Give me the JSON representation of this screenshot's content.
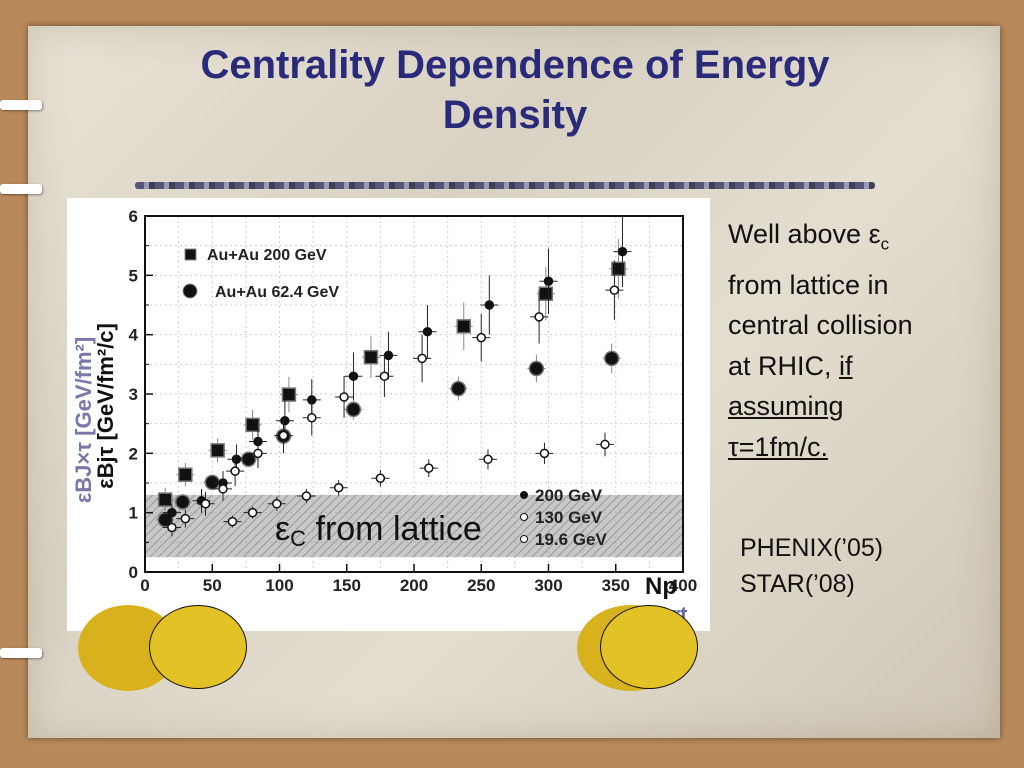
{
  "slide": {
    "title_line1": "Centrality Dependence of Energy",
    "title_line2": "Density",
    "text": {
      "line1_prefix": "Well above ",
      "eps": "ε",
      "c_sub": "c",
      "line2": "from lattice in",
      "line3": "central collision",
      "line4_prefix": "at  RHIC, ",
      "line4_if": "if",
      "line5": "assuming",
      "line6": "τ=1fm/c."
    },
    "refs": [
      "PHENIX(’05)",
      "STAR(’08)"
    ]
  },
  "chart_data": {
    "type": "scatter",
    "xlim": [
      0,
      400
    ],
    "ylim": [
      0,
      6
    ],
    "x_ticks": [
      0,
      50,
      100,
      150,
      200,
      250,
      300,
      350,
      400
    ],
    "y_ticks": [
      0,
      1,
      2,
      3,
      4,
      5,
      6
    ],
    "ylabel_a": "εBJ×τ [GeV/fm²]",
    "ylabel_b": "εBjτ [GeV/fm²/c]",
    "xlabel_a": "Np",
    "xlabel_b": "Npart",
    "grid": true,
    "legend_top": [
      {
        "name": "Au+Au 200 GeV",
        "marker": "square"
      },
      {
        "name": "Au+Au 62.4 GeV",
        "marker": "circle"
      }
    ],
    "legend_bottom": [
      "200 GeV",
      "130 GeV",
      "19.6 GeV"
    ],
    "band": {
      "y_low": 0.25,
      "y_high": 1.3,
      "label": "εC from lattice"
    },
    "series": [
      {
        "name": "Au+Au 200 GeV",
        "marker": "square",
        "x": [
          15,
          30,
          54,
          80,
          107,
          168,
          237,
          298,
          352
        ],
        "y": [
          1.22,
          1.64,
          2.05,
          2.48,
          2.99,
          3.62,
          4.14,
          4.69,
          5.11
        ],
        "err": [
          0.2,
          0.2,
          0.2,
          0.25,
          0.3,
          0.35,
          0.4,
          0.45,
          0.5
        ]
      },
      {
        "name": "Au+Au 62.4 GeV",
        "marker": "circle",
        "x": [
          15,
          28,
          50,
          77,
          103,
          155,
          233,
          291,
          347
        ],
        "y": [
          0.88,
          1.18,
          1.51,
          1.9,
          2.29,
          2.74,
          3.09,
          3.43,
          3.6
        ],
        "err": [
          0.1,
          0.1,
          0.12,
          0.13,
          0.15,
          0.17,
          0.2,
          0.23,
          0.25
        ]
      },
      {
        "name": "200 GeV",
        "marker": "filled-dot",
        "x": [
          20,
          42,
          58,
          68,
          84,
          104,
          124,
          155,
          181,
          210,
          256,
          300,
          355
        ],
        "y": [
          1.0,
          1.2,
          1.5,
          1.9,
          2.2,
          2.55,
          2.9,
          3.3,
          3.65,
          4.05,
          4.5,
          4.9,
          5.4
        ],
        "err": [
          0.15,
          0.2,
          0.2,
          0.25,
          0.3,
          0.35,
          0.35,
          0.4,
          0.4,
          0.45,
          0.5,
          0.55,
          0.6
        ]
      },
      {
        "name": "130 GeV",
        "marker": "open-dot",
        "x": [
          20,
          30,
          45,
          58,
          67,
          84,
          103,
          124,
          148,
          178,
          206,
          250,
          293,
          349
        ],
        "y": [
          0.75,
          0.9,
          1.15,
          1.4,
          1.7,
          2.0,
          2.3,
          2.6,
          2.95,
          3.3,
          3.6,
          3.95,
          4.3,
          4.75
        ],
        "err": [
          0.15,
          0.15,
          0.2,
          0.2,
          0.25,
          0.25,
          0.3,
          0.3,
          0.35,
          0.35,
          0.4,
          0.4,
          0.45,
          0.5
        ]
      },
      {
        "name": "19.6 GeV",
        "marker": "open-dot",
        "x": [
          65,
          80,
          98,
          120,
          144,
          175,
          211,
          255,
          297,
          342
        ],
        "y": [
          0.85,
          1.0,
          1.15,
          1.28,
          1.42,
          1.58,
          1.75,
          1.9,
          2.0,
          2.15
        ],
        "err": [
          0.1,
          0.1,
          0.12,
          0.12,
          0.13,
          0.14,
          0.15,
          0.17,
          0.18,
          0.2
        ]
      }
    ]
  }
}
